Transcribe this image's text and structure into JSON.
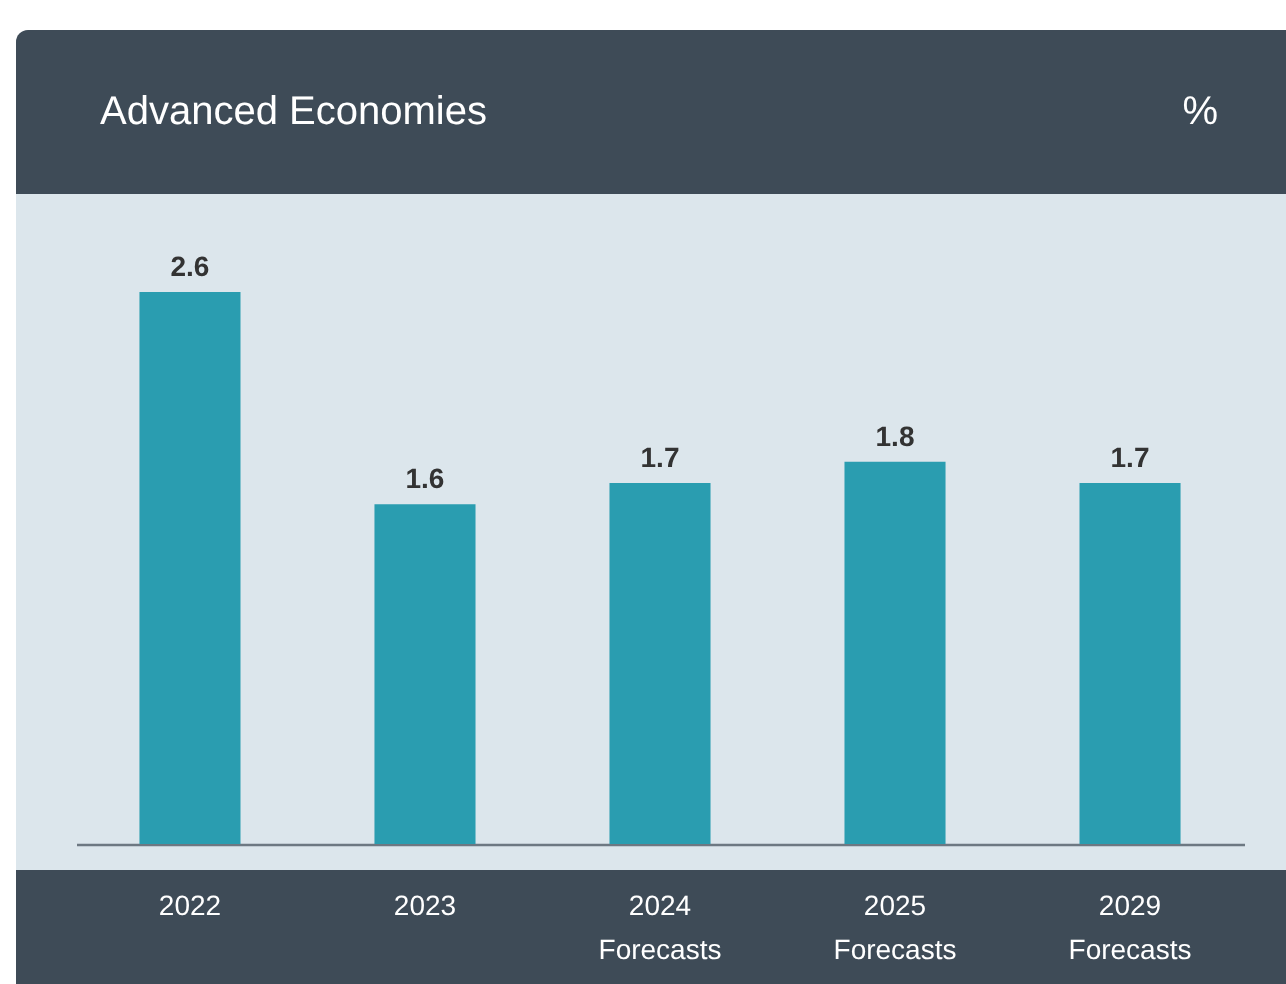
{
  "chart_data": {
    "type": "bar",
    "title": "Advanced Economies",
    "ylabel": "%",
    "categories": [
      "2022",
      "2023",
      "2024 Forecasts",
      "2025 Forecasts",
      "2029 Forecasts"
    ],
    "values": [
      2.6,
      1.6,
      1.7,
      1.8,
      1.7
    ],
    "color": "#2a9db0",
    "data_labels": true
  }
}
